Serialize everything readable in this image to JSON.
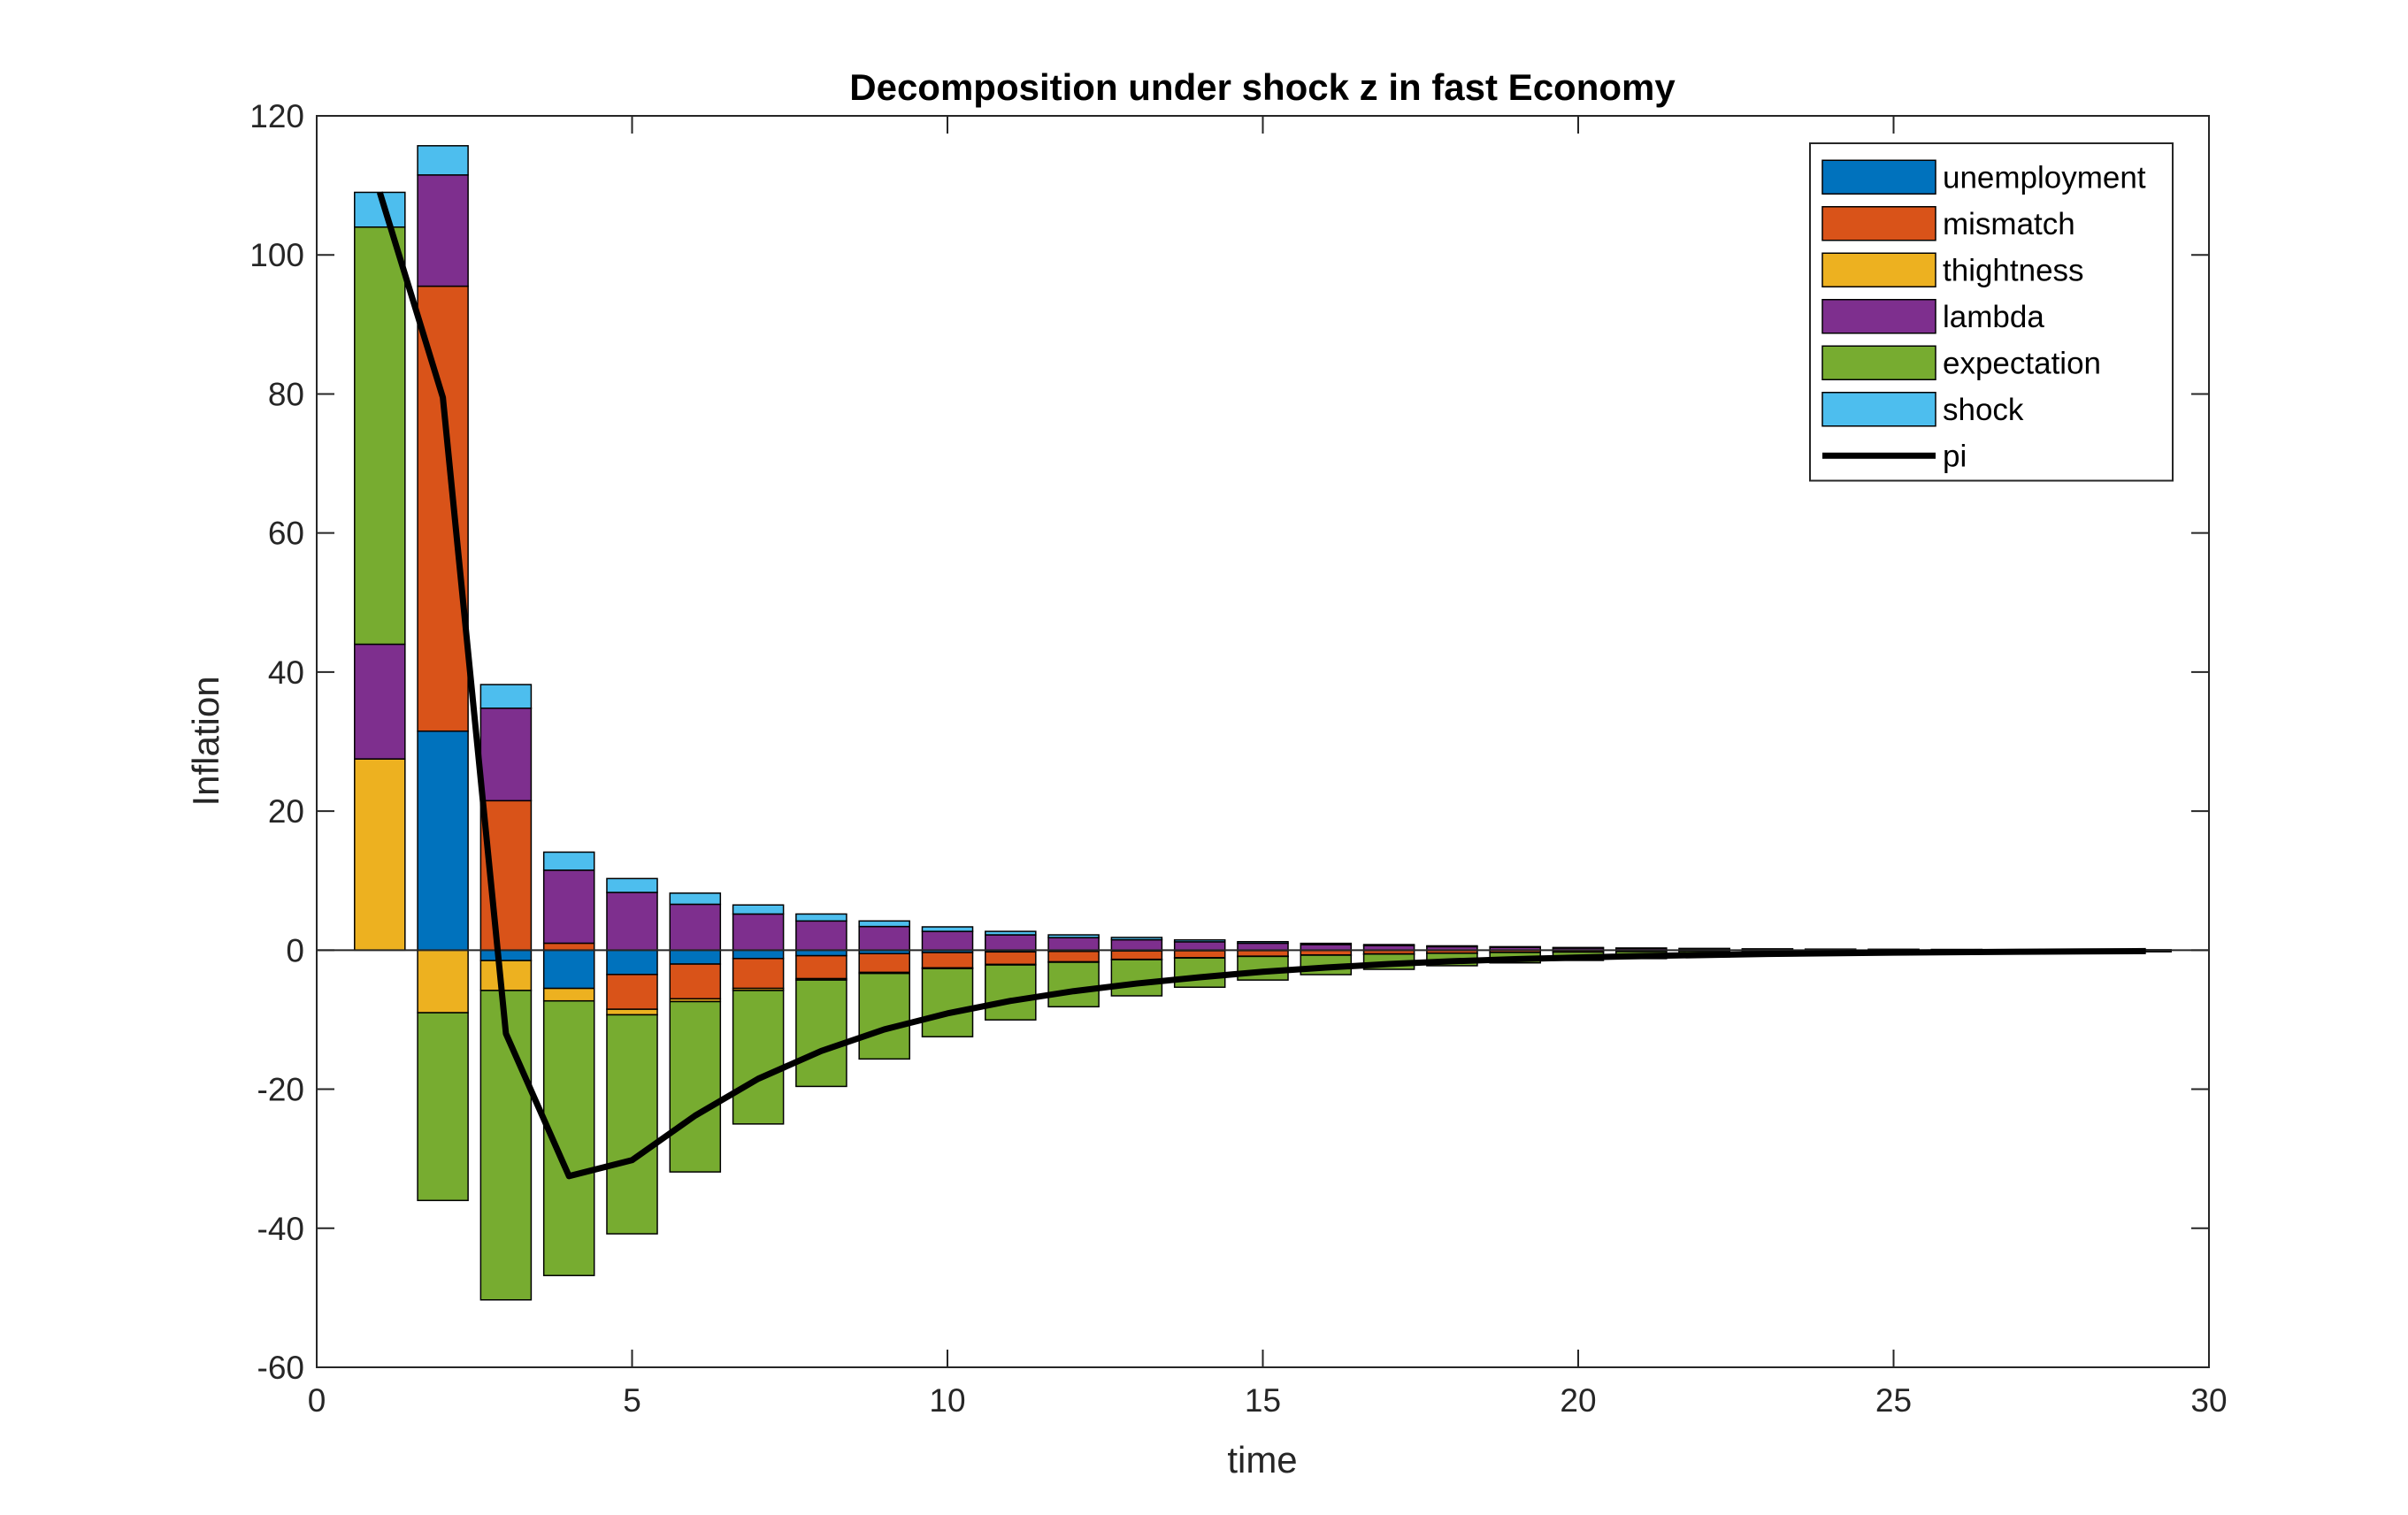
{
  "chart_data": {
    "type": "bar",
    "stacked": true,
    "title": "Decomposition under shock z in fast Economy",
    "xlabel": "time",
    "ylabel": "Inflation",
    "xlim": [
      0,
      30
    ],
    "ylim": [
      -60,
      120
    ],
    "xticks": [
      0,
      5,
      10,
      15,
      20,
      25,
      30
    ],
    "yticks": [
      -60,
      -40,
      -20,
      0,
      20,
      40,
      60,
      80,
      100,
      120
    ],
    "grid": false,
    "legend_position": "top-right",
    "x": [
      1,
      2,
      3,
      4,
      5,
      6,
      7,
      8,
      9,
      10,
      11,
      12,
      13,
      14,
      15,
      16,
      17,
      18,
      19,
      20,
      21,
      22,
      23,
      24,
      25,
      26,
      27,
      28,
      29
    ],
    "series": [
      {
        "name": "unemployment",
        "color": "#0072BD",
        "values": [
          0,
          31.5,
          -1.5,
          -5.5,
          -3.5,
          -2.0,
          -1.2,
          -0.8,
          -0.5,
          -0.35,
          -0.25,
          -0.18,
          -0.12,
          -0.09,
          -0.07,
          -0.05,
          -0.04,
          -0.03,
          -0.02,
          -0.015,
          -0.01,
          -0.01,
          -0.005,
          -0.005,
          -0.004,
          -0.003,
          -0.002,
          -0.002,
          -0.001
        ]
      },
      {
        "name": "mismatch",
        "color": "#D95319",
        "values": [
          0,
          64,
          21.5,
          1.0,
          -5.0,
          -5.0,
          -4.3,
          -3.3,
          -2.7,
          -2.2,
          -1.8,
          -1.5,
          -1.2,
          -1.0,
          -0.8,
          -0.65,
          -0.5,
          -0.4,
          -0.3,
          -0.25,
          -0.2,
          -0.15,
          -0.12,
          -0.1,
          -0.08,
          -0.06,
          -0.05,
          -0.04,
          -0.03
        ]
      },
      {
        "name": "thightness",
        "color": "#EDB120",
        "values": [
          27.5,
          -9.0,
          -4.3,
          -1.8,
          -0.8,
          -0.4,
          -0.3,
          -0.2,
          -0.15,
          -0.1,
          -0.08,
          -0.06,
          -0.05,
          -0.04,
          -0.03,
          -0.02,
          -0.02,
          -0.01,
          -0.01,
          -0.01,
          -0.005,
          -0.005,
          -0.004,
          -0.003,
          -0.002,
          -0.002,
          -0.001,
          -0.001,
          -0.001
        ]
      },
      {
        "name": "lambda",
        "color": "#7E2F8E",
        "values": [
          16.5,
          16.0,
          13.3,
          10.5,
          8.3,
          6.6,
          5.2,
          4.2,
          3.4,
          2.7,
          2.2,
          1.8,
          1.5,
          1.2,
          1.0,
          0.8,
          0.65,
          0.5,
          0.4,
          0.3,
          0.25,
          0.2,
          0.15,
          0.12,
          0.1,
          0.08,
          0.06,
          0.05,
          0.04
        ]
      },
      {
        "name": "expectation",
        "color": "#77AC30",
        "values": [
          60,
          -27.0,
          -44.5,
          -39.5,
          -31.5,
          -24.5,
          -19.2,
          -15.3,
          -12.3,
          -9.8,
          -7.9,
          -6.4,
          -5.2,
          -4.2,
          -3.4,
          -2.8,
          -2.2,
          -1.8,
          -1.5,
          -1.2,
          -1.0,
          -0.8,
          -0.6,
          -0.5,
          -0.4,
          -0.35,
          -0.3,
          -0.25,
          -0.2
        ]
      },
      {
        "name": "shock",
        "color": "#4DBEEE",
        "values": [
          5.0,
          4.2,
          3.4,
          2.6,
          2.0,
          1.6,
          1.3,
          1.0,
          0.8,
          0.65,
          0.5,
          0.4,
          0.33,
          0.27,
          0.22,
          0.18,
          0.15,
          0.12,
          0.1,
          0.08,
          0.06,
          0.05,
          0.04,
          0.03,
          0.025,
          0.02,
          0.015,
          0.012,
          0.01
        ]
      }
    ],
    "line": {
      "name": "pi",
      "color": "#000000",
      "x": [
        1,
        2,
        3,
        4,
        5,
        6,
        7,
        8,
        9,
        10,
        11,
        12,
        13,
        14,
        15,
        16,
        17,
        18,
        19,
        20,
        21,
        22,
        23,
        24,
        25,
        26,
        27,
        28,
        29
      ],
      "values": [
        109,
        79.5,
        -12,
        -32.5,
        -30.2,
        -23.8,
        -18.5,
        -14.5,
        -11.4,
        -9.1,
        -7.3,
        -5.9,
        -4.8,
        -3.9,
        -3.1,
        -2.5,
        -2.0,
        -1.6,
        -1.3,
        -1.05,
        -0.85,
        -0.7,
        -0.55,
        -0.45,
        -0.36,
        -0.29,
        -0.23,
        -0.18,
        -0.14
      ]
    }
  }
}
